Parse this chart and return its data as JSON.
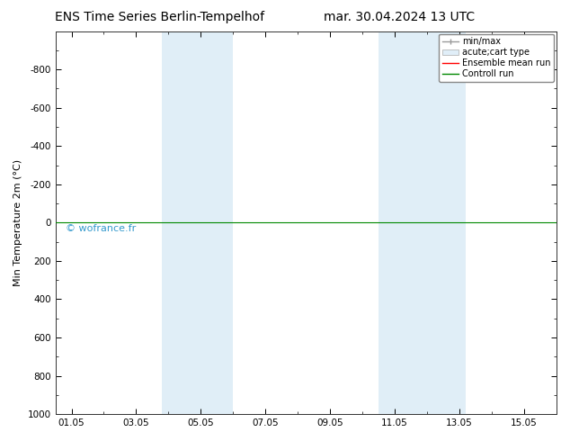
{
  "title_left": "ENS Time Series Berlin-Tempelhof",
  "title_right": "mar. 30.04.2024 13 UTC",
  "ylabel": "Min Temperature 2m (°C)",
  "ylim_bottom": 1000,
  "ylim_top": -1000,
  "xlim": [
    0.5,
    16.0
  ],
  "xtick_positions": [
    1,
    3,
    5,
    7,
    9,
    11,
    13,
    15
  ],
  "xtick_labels": [
    "01.05",
    "03.05",
    "05.05",
    "07.05",
    "09.05",
    "11.05",
    "13.05",
    "15.05"
  ],
  "ytick_positions": [
    -800,
    -600,
    -400,
    -200,
    0,
    200,
    400,
    600,
    800,
    1000
  ],
  "ytick_labels": [
    "-800",
    "-600",
    "-400",
    "-200",
    "0",
    "200",
    "400",
    "600",
    "800",
    "1000"
  ],
  "green_line_y": 0,
  "red_line_y": 0,
  "shaded_bands": [
    {
      "xmin": 3.8,
      "xmax": 6.0
    },
    {
      "xmin": 10.5,
      "xmax": 13.2
    }
  ],
  "band_color": "#d4e8f5",
  "band_alpha": 0.7,
  "background_color": "#ffffff",
  "watermark": "© wofrance.fr",
  "watermark_color": "#3399cc",
  "watermark_fontsize": 8,
  "legend_entries": [
    "min/max",
    "acute;cart type",
    "Ensemble mean run",
    "Controll run"
  ],
  "legend_colors": [
    "#999999",
    "#cccccc",
    "#ff0000",
    "#008800"
  ],
  "title_fontsize": 10,
  "axis_label_fontsize": 8,
  "tick_fontsize": 7.5,
  "legend_fontsize": 7
}
